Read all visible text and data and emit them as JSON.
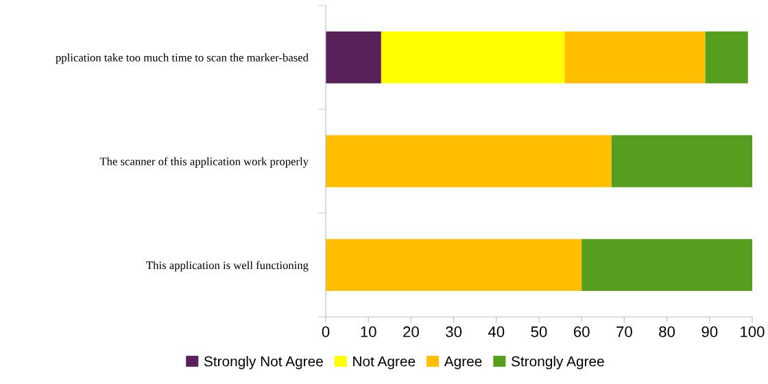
{
  "chart_data": {
    "type": "bar",
    "orientation": "horizontal",
    "stacked": true,
    "categories": [
      "pplication take too much time to scan the marker-based",
      "The scanner of this application work properly",
      "This application is well functioning"
    ],
    "series": [
      {
        "name": "Strongly Not Agree",
        "color": "#582159",
        "values": [
          13,
          0,
          0
        ]
      },
      {
        "name": "Not Agree",
        "color": "#ffff00",
        "values": [
          43,
          0,
          0
        ]
      },
      {
        "name": "Agree",
        "color": "#ffbf00",
        "values": [
          33,
          67,
          60
        ]
      },
      {
        "name": "Strongly Agree",
        "color": "#569e1e",
        "values": [
          10,
          33,
          40
        ]
      }
    ],
    "xlim": [
      0,
      100
    ],
    "xticks": [
      0,
      10,
      20,
      30,
      40,
      50,
      60,
      70,
      80,
      90,
      100
    ],
    "grid": false,
    "legend": "bottom"
  }
}
